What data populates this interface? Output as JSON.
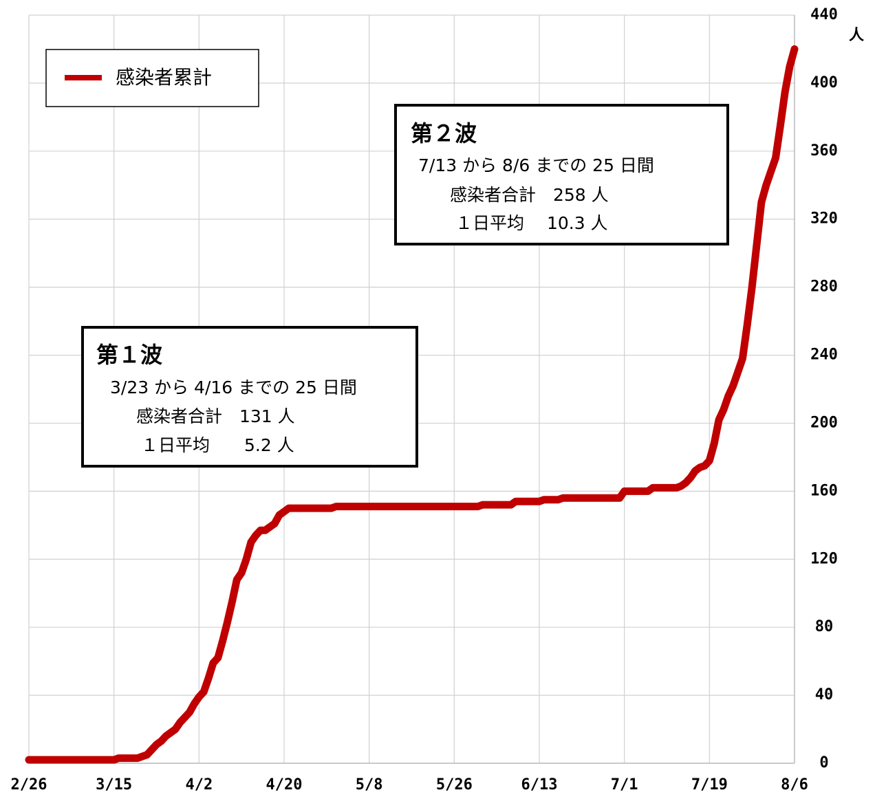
{
  "chart_data": {
    "type": "line",
    "y_unit": "人",
    "categories": [
      "2/26",
      null,
      null,
      null,
      null,
      null,
      null,
      null,
      null,
      null,
      null,
      null,
      null,
      null,
      null,
      null,
      null,
      null,
      "3/15",
      null,
      null,
      null,
      null,
      null,
      null,
      null,
      null,
      null,
      null,
      null,
      null,
      null,
      null,
      null,
      null,
      null,
      "4/2",
      null,
      null,
      null,
      null,
      null,
      null,
      null,
      null,
      null,
      null,
      null,
      null,
      null,
      null,
      null,
      null,
      null,
      "4/20",
      null,
      null,
      null,
      null,
      null,
      null,
      null,
      null,
      null,
      null,
      null,
      null,
      null,
      null,
      null,
      null,
      null,
      "5/8",
      null,
      null,
      null,
      null,
      null,
      null,
      null,
      null,
      null,
      null,
      null,
      null,
      null,
      null,
      null,
      null,
      null,
      "5/26",
      null,
      null,
      null,
      null,
      null,
      null,
      null,
      null,
      null,
      null,
      null,
      null,
      null,
      null,
      null,
      null,
      null,
      "6/13",
      null,
      null,
      null,
      null,
      null,
      null,
      null,
      null,
      null,
      null,
      null,
      null,
      null,
      null,
      null,
      null,
      null,
      "7/1",
      null,
      null,
      null,
      null,
      null,
      null,
      null,
      null,
      null,
      null,
      null,
      null,
      null,
      null,
      null,
      null,
      null,
      "7/19",
      null,
      null,
      null,
      null,
      null,
      null,
      null,
      null,
      null,
      null,
      null,
      null,
      null,
      null,
      null,
      null,
      null,
      "8/6"
    ],
    "series": [
      {
        "name": "感染者累計",
        "color": "#c00000",
        "values": [
          2,
          2,
          2,
          2,
          2,
          2,
          2,
          2,
          2,
          2,
          2,
          2,
          2,
          2,
          2,
          2,
          2,
          2,
          2,
          3,
          3,
          3,
          3,
          3,
          4,
          5,
          8,
          11,
          13,
          16,
          18,
          20,
          24,
          27,
          30,
          35,
          39,
          42,
          50,
          59,
          62,
          72,
          83,
          95,
          108,
          112,
          120,
          130,
          134,
          137,
          137,
          139,
          141,
          146,
          148,
          150,
          150,
          150,
          150,
          150,
          150,
          150,
          150,
          150,
          150,
          151,
          151,
          151,
          151,
          151,
          151,
          151,
          151,
          151,
          151,
          151,
          151,
          151,
          151,
          151,
          151,
          151,
          151,
          151,
          151,
          151,
          151,
          151,
          151,
          151,
          151,
          151,
          151,
          151,
          151,
          151,
          152,
          152,
          152,
          152,
          152,
          152,
          152,
          154,
          154,
          154,
          154,
          154,
          154,
          155,
          155,
          155,
          155,
          156,
          156,
          156,
          156,
          156,
          156,
          156,
          156,
          156,
          156,
          156,
          156,
          156,
          160,
          160,
          160,
          160,
          160,
          160,
          162,
          162,
          162,
          162,
          162,
          162,
          163,
          165,
          168,
          172,
          174,
          175,
          178,
          188,
          202,
          208,
          216,
          222,
          230,
          238,
          258,
          280,
          305,
          330,
          340,
          348,
          356,
          375,
          395,
          410,
          420
        ]
      }
    ],
    "ylim": [
      0,
      440
    ],
    "yticks": [
      0,
      40,
      80,
      120,
      160,
      200,
      240,
      280,
      320,
      360,
      400,
      440
    ],
    "grid": true,
    "legend": "upper left",
    "annotations": [
      {
        "title": "第１波",
        "lines": [
          "3/23 から 4/16 までの 25 日間",
          "感染者合計　131 人",
          "１日平均　　5.2 人"
        ]
      },
      {
        "title": "第２波",
        "lines": [
          "7/13 から 8/6 までの 25 日間",
          "感染者合計　258 人",
          "１日平均　 10.3 人"
        ]
      }
    ]
  }
}
